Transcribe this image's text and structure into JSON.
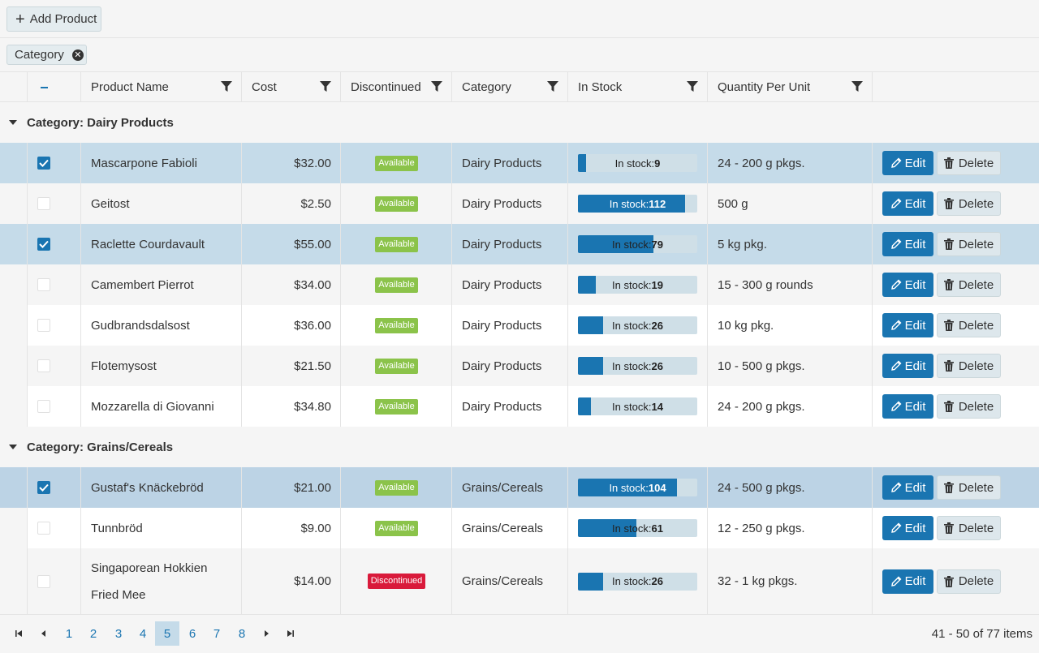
{
  "toolbar": {
    "add_label": "Add Product"
  },
  "grouping": {
    "chip_label": "Category"
  },
  "columns": {
    "product_name": "Product Name",
    "cost": "Cost",
    "discontinued": "Discontinued",
    "category": "Category",
    "in_stock": "In Stock",
    "qpu": "Quantity Per Unit"
  },
  "groups": [
    {
      "label": "Category: Dairy Products"
    },
    {
      "label": "Category: Grains/Cereals"
    }
  ],
  "rows": [
    {
      "selected": true,
      "name": "Mascarpone Fabioli",
      "cost": "$32.00",
      "status": "Available",
      "category": "Dairy Products",
      "stock_label": "In stock:",
      "stock": "9",
      "stock_fraction": 0.07,
      "qpu": "24 - 200 g pkgs."
    },
    {
      "selected": false,
      "name": "Geitost",
      "cost": "$2.50",
      "status": "Available",
      "category": "Dairy Products",
      "stock_label": "In stock:",
      "stock": "112",
      "stock_fraction": 0.9,
      "qpu": "500 g"
    },
    {
      "selected": true,
      "name": "Raclette Courdavault",
      "cost": "$55.00",
      "status": "Available",
      "category": "Dairy Products",
      "stock_label": "In stock:",
      "stock": "79",
      "stock_fraction": 0.63,
      "qpu": "5 kg pkg."
    },
    {
      "selected": false,
      "name": "Camembert Pierrot",
      "cost": "$34.00",
      "status": "Available",
      "category": "Dairy Products",
      "stock_label": "In stock:",
      "stock": "19",
      "stock_fraction": 0.15,
      "qpu": "15 - 300 g rounds"
    },
    {
      "selected": false,
      "name": "Gudbrandsdalsost",
      "cost": "$36.00",
      "status": "Available",
      "category": "Dairy Products",
      "stock_label": "In stock:",
      "stock": "26",
      "stock_fraction": 0.21,
      "qpu": "10 kg pkg."
    },
    {
      "selected": false,
      "name": "Flotemysost",
      "cost": "$21.50",
      "status": "Available",
      "category": "Dairy Products",
      "stock_label": "In stock:",
      "stock": "26",
      "stock_fraction": 0.21,
      "qpu": "10 - 500 g pkgs."
    },
    {
      "selected": false,
      "name": "Mozzarella di Giovanni",
      "cost": "$34.80",
      "status": "Available",
      "category": "Dairy Products",
      "stock_label": "In stock:",
      "stock": "14",
      "stock_fraction": 0.11,
      "qpu": "24 - 200 g pkgs."
    },
    {
      "selected": true,
      "name": "Gustaf's Knäckebröd",
      "cost": "$21.00",
      "status": "Available",
      "category": "Grains/Cereals",
      "stock_label": "In stock:",
      "stock": "104",
      "stock_fraction": 0.83,
      "qpu": "24 - 500 g pkgs."
    },
    {
      "selected": false,
      "name": "Tunnbröd",
      "cost": "$9.00",
      "status": "Available",
      "category": "Grains/Cereals",
      "stock_label": "In stock:",
      "stock": "61",
      "stock_fraction": 0.49,
      "qpu": "12 - 250 g pkgs."
    },
    {
      "selected": false,
      "name": "Singaporean Hokkien Fried Mee",
      "cost": "$14.00",
      "status": "Discontinued",
      "category": "Grains/Cereals",
      "stock_label": "In stock:",
      "stock": "26",
      "stock_fraction": 0.21,
      "qpu": "32 - 1 kg pkgs."
    }
  ],
  "actions": {
    "edit_label": "Edit",
    "delete_label": "Delete"
  },
  "pager": {
    "pages": [
      "1",
      "2",
      "3",
      "4",
      "5",
      "6",
      "7",
      "8"
    ],
    "current": "5",
    "info": "41 - 50 of 77 items"
  },
  "colors": {
    "accent": "#1a75b1",
    "available": "#8bc34a",
    "discontinued": "#d91a3b",
    "selected_row": "#c5dbe9"
  }
}
